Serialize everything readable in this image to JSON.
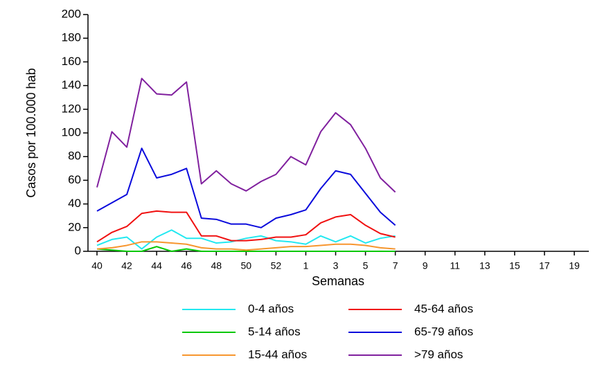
{
  "chart_data": {
    "type": "line",
    "x_label": "Semanas",
    "y_label": "Casos por 100.000 hab",
    "categories": [
      40,
      null,
      42,
      null,
      44,
      null,
      46,
      null,
      48,
      null,
      50,
      null,
      52,
      null,
      1,
      null,
      3,
      null,
      5,
      null,
      7,
      null,
      9,
      null,
      11,
      null,
      13,
      null,
      15,
      null,
      17,
      null,
      19
    ],
    "ylim": [
      0,
      200
    ],
    "yticks": [
      0,
      20,
      40,
      60,
      80,
      100,
      120,
      140,
      160,
      180,
      200
    ],
    "series": [
      {
        "name": "0-4 años",
        "color": "#22e8f0",
        "values": [
          5,
          10,
          12,
          2,
          12,
          18,
          11,
          11,
          7,
          8,
          11,
          13,
          9,
          8,
          6,
          13,
          8,
          13,
          7,
          11,
          13,
          null,
          null,
          null,
          null,
          null,
          null,
          null,
          null,
          null,
          null,
          null,
          null
        ]
      },
      {
        "name": "5-14 años",
        "color": "#00c800",
        "values": [
          2,
          1,
          0,
          0,
          4,
          0,
          2,
          0,
          0,
          0,
          0,
          0,
          0,
          0,
          0,
          0,
          0,
          0,
          0,
          0,
          0,
          null,
          null,
          null,
          null,
          null,
          null,
          null,
          null,
          null,
          null,
          null,
          null
        ]
      },
      {
        "name": "15-44 años",
        "color": "#f7962e",
        "values": [
          2,
          3,
          5,
          8,
          8,
          7,
          6,
          3,
          2,
          2,
          1,
          2,
          3,
          4,
          4,
          5,
          6,
          6,
          5,
          3,
          2,
          null,
          null,
          null,
          null,
          null,
          null,
          null,
          null,
          null,
          null,
          null,
          null
        ]
      },
      {
        "name": "45-64 años",
        "color": "#f01010",
        "values": [
          8,
          16,
          21,
          32,
          34,
          33,
          33,
          13,
          13,
          9,
          9,
          10,
          12,
          12,
          14,
          24,
          29,
          31,
          22,
          15,
          12,
          null,
          null,
          null,
          null,
          null,
          null,
          null,
          null,
          null,
          null,
          null,
          null
        ]
      },
      {
        "name": "65-79 años",
        "color": "#0a0adc",
        "values": [
          34,
          41,
          48,
          87,
          62,
          65,
          70,
          28,
          27,
          23,
          23,
          20,
          28,
          31,
          35,
          53,
          68,
          65,
          49,
          33,
          22,
          null,
          null,
          null,
          null,
          null,
          null,
          null,
          null,
          null,
          null,
          null,
          null
        ]
      },
      {
        "name": ">79 años",
        "color": "#80209e",
        "values": [
          54,
          101,
          88,
          146,
          133,
          132,
          143,
          57,
          68,
          57,
          51,
          59,
          65,
          80,
          73,
          101,
          117,
          107,
          87,
          62,
          50,
          null,
          null,
          null,
          null,
          null,
          null,
          null,
          null,
          null,
          null,
          null,
          null
        ]
      }
    ]
  }
}
